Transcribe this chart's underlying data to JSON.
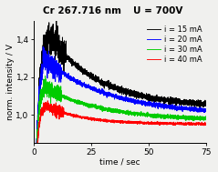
{
  "title_left": "Cr 267.716 nm",
  "title_right": "U = 700V",
  "xlabel": "time / sec",
  "ylabel": "norm. intensity / V",
  "xlim": [
    0,
    75
  ],
  "ylim": [
    0.85,
    1.5
  ],
  "yticks": [
    1.0,
    1.2,
    1.4
  ],
  "xticks": [
    0,
    25,
    50,
    75
  ],
  "lines": [
    {
      "label": "i = 15 mA",
      "color": "#000000",
      "peak_x": 6,
      "peak_y": 1.43,
      "start_y": 0.0,
      "end_y": 1.04,
      "rise_tau": 1.5,
      "decay_tau": 22,
      "noise": 0.01
    },
    {
      "label": "i = 20 mA",
      "color": "#0000ff",
      "peak_x": 4,
      "peak_y": 1.3,
      "start_y": 0.0,
      "end_y": 1.0,
      "rise_tau": 1.2,
      "decay_tau": 28,
      "noise": 0.007
    },
    {
      "label": "i = 30 mA",
      "color": "#00cc00",
      "peak_x": 4,
      "peak_y": 1.15,
      "start_y": 0.0,
      "end_y": 0.97,
      "rise_tau": 1.0,
      "decay_tau": 25,
      "noise": 0.006
    },
    {
      "label": "i = 40 mA",
      "color": "#ff0000",
      "peak_x": 5,
      "peak_y": 1.05,
      "start_y": 0.0,
      "end_y": 0.95,
      "rise_tau": 1.0,
      "decay_tau": 16,
      "noise": 0.004
    }
  ],
  "background_color": "#f0f0ee",
  "legend_fontsize": 6.0,
  "title_fontsize": 7.5,
  "axis_fontsize": 6.5,
  "tick_fontsize": 6.5
}
